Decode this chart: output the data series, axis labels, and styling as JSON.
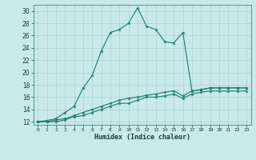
{
  "xlabel": "Humidex (Indice chaleur)",
  "bg_color": "#c8eaea",
  "line_color": "#1a7a6e",
  "grid_color": "#b0d4d4",
  "xlim": [
    -0.5,
    23.5
  ],
  "ylim": [
    11.5,
    31
  ],
  "xticks": [
    0,
    1,
    2,
    3,
    4,
    5,
    6,
    7,
    8,
    9,
    10,
    11,
    12,
    13,
    14,
    15,
    16,
    17,
    18,
    19,
    20,
    21,
    22,
    23
  ],
  "yticks": [
    12,
    14,
    16,
    18,
    20,
    22,
    24,
    26,
    28,
    30
  ],
  "line1_x": [
    0,
    1,
    2,
    3,
    4,
    5,
    6,
    7,
    8,
    9,
    10,
    11,
    12,
    13,
    14,
    15,
    16,
    17,
    18,
    19,
    20,
    21,
    22,
    23
  ],
  "line1_y": [
    12,
    12.2,
    12.5,
    13.5,
    14.5,
    17.5,
    19.5,
    23.5,
    26.5,
    27,
    28,
    30.5,
    27.5,
    27,
    25,
    24.8,
    26.5,
    17,
    17.2,
    17.5,
    17.5,
    17.5,
    17.5,
    17.5
  ],
  "line2_x": [
    0,
    1,
    2,
    3,
    4,
    5,
    6,
    7,
    8,
    9,
    10,
    11,
    12,
    13,
    14,
    15,
    16,
    17,
    18,
    19,
    20,
    21,
    22,
    23
  ],
  "line2_y": [
    12,
    12,
    12.3,
    12.5,
    13,
    13.5,
    14,
    14.5,
    15,
    15.5,
    15.8,
    16,
    16.3,
    16.5,
    16.8,
    17,
    16.2,
    17,
    17.2,
    17.5,
    17.5,
    17.5,
    17.5,
    17.5
  ],
  "line3_x": [
    0,
    1,
    2,
    3,
    4,
    5,
    6,
    7,
    8,
    9,
    10,
    11,
    12,
    13,
    14,
    15,
    16,
    17,
    18,
    19,
    20,
    21,
    22,
    23
  ],
  "line3_y": [
    12,
    12,
    12,
    12.3,
    12.8,
    13,
    13.5,
    14,
    14.5,
    15,
    15,
    15.5,
    16,
    16,
    16.2,
    16.5,
    15.8,
    16.5,
    16.8,
    17,
    17,
    17,
    17,
    17
  ]
}
